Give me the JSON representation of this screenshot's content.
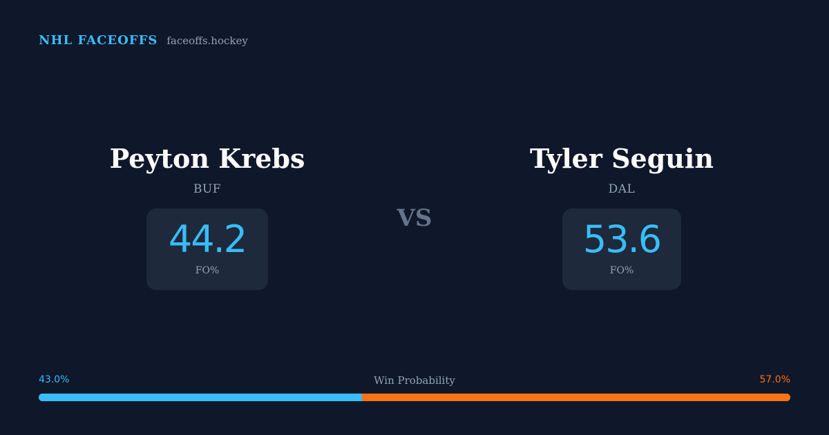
{
  "brand": {
    "name": "NHL FACEOFFS",
    "domain": "faceoffs.hockey"
  },
  "vs_label": "VS",
  "players": {
    "left": {
      "name": "Peyton Krebs",
      "team": "BUF",
      "stat_value": "44.2",
      "stat_label": "FO%"
    },
    "right": {
      "name": "Tyler Seguin",
      "team": "DAL",
      "stat_value": "53.6",
      "stat_label": "FO%"
    }
  },
  "win_probability": {
    "title": "Win Probability",
    "left_label": "43.0%",
    "right_label": "57.0%",
    "left_fraction": 0.43,
    "right_fraction": 0.57
  },
  "colors": {
    "background": "#0f172a",
    "card": "#1e293b",
    "accent_left": "#38bdf8",
    "accent_right": "#f97316",
    "muted": "#94a3b8"
  }
}
